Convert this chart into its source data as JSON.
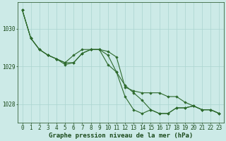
{
  "background_color": "#cceae7",
  "grid_color": "#aad4d0",
  "line_color": "#2d6a2d",
  "marker_color": "#2d6a2d",
  "xlabel": "Graphe pression niveau de la mer (hPa)",
  "xlabel_fontsize": 6.5,
  "xlabel_color": "#1a4a1a",
  "ylim": [
    1027.5,
    1030.7
  ],
  "xlim": [
    -0.5,
    23.5
  ],
  "yticks": [
    1028,
    1029,
    1030
  ],
  "xticks": [
    0,
    1,
    2,
    3,
    4,
    5,
    6,
    7,
    8,
    9,
    10,
    11,
    12,
    13,
    14,
    15,
    16,
    17,
    18,
    19,
    20,
    21,
    22,
    23
  ],
  "tick_fontsize": 5.5,
  "tick_color": "#1a4a1a",
  "series1_x": [
    0,
    1,
    2,
    3,
    4,
    5,
    6,
    7,
    8,
    9,
    10,
    11,
    12,
    13,
    14,
    15,
    16,
    17,
    18,
    19,
    20,
    21,
    22,
    23
  ],
  "series1_y": [
    1030.5,
    1029.75,
    1029.45,
    1029.3,
    1029.2,
    1029.1,
    1029.3,
    1029.45,
    1029.45,
    1029.45,
    1029.3,
    1028.85,
    1028.2,
    1027.85,
    1027.75,
    1027.85,
    1027.75,
    1027.75,
    1027.9,
    1027.9,
    1027.95,
    1027.85,
    1027.85,
    1027.75
  ],
  "series2_x": [
    0,
    1,
    2,
    3,
    4,
    5,
    6,
    7,
    8,
    9,
    10,
    11,
    12,
    13,
    14,
    15,
    16,
    17,
    18,
    19,
    20,
    21,
    22,
    23
  ],
  "series2_y": [
    1030.5,
    1029.75,
    1029.45,
    1029.3,
    1029.2,
    1029.1,
    1029.1,
    1029.35,
    1029.45,
    1029.45,
    1029.05,
    1028.85,
    1028.5,
    1028.3,
    1028.1,
    1027.85,
    1027.75,
    1027.75,
    1027.9,
    1027.9,
    1027.95,
    1027.85,
    1027.85,
    1027.75
  ],
  "series3_x": [
    0,
    1,
    2,
    3,
    4,
    5,
    6,
    7,
    8,
    9,
    10,
    11,
    12,
    13,
    14,
    15,
    16,
    17,
    18,
    19,
    20,
    21,
    22,
    23
  ],
  "series3_y": [
    1030.5,
    1029.75,
    1029.45,
    1029.3,
    1029.2,
    1029.05,
    1029.1,
    1029.35,
    1029.45,
    1029.45,
    1029.4,
    1029.25,
    1028.45,
    1028.35,
    1028.3,
    1028.3,
    1028.3,
    1028.2,
    1028.2,
    1028.05,
    1027.95,
    1027.85,
    1027.85,
    1027.75
  ]
}
